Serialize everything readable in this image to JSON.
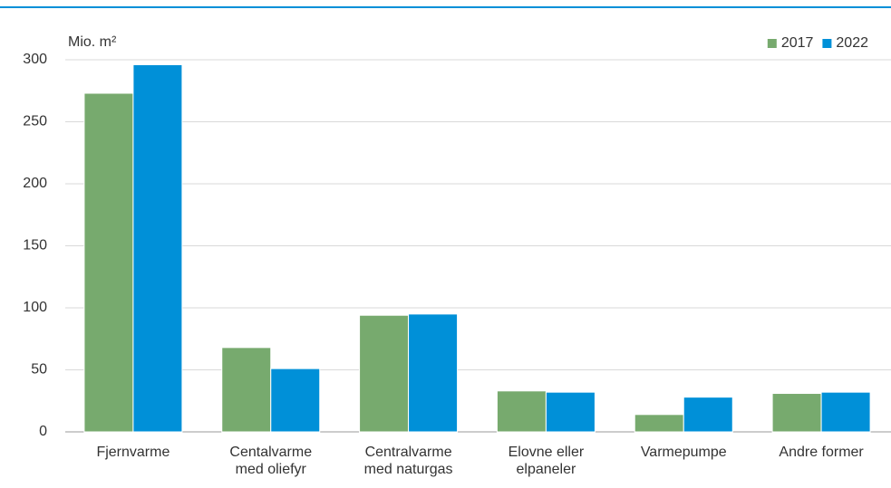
{
  "chart_data": {
    "type": "bar",
    "y_label": "Mio. m²",
    "categories": [
      "Fjernvarme",
      "Centalvarme med oliefyr",
      "Centralvarme med naturgas",
      "Elovne eller elpaneler",
      "Varmepumpe",
      "Andre former"
    ],
    "series": [
      {
        "name": "2017",
        "color": "#77aa6e",
        "values": [
          273,
          68,
          94,
          33,
          14,
          31
        ]
      },
      {
        "name": "2022",
        "color": "#0090d8",
        "values": [
          296,
          51,
          95,
          32,
          28,
          32
        ]
      }
    ],
    "ylim": [
      0,
      300
    ],
    "yticks": [
      0,
      50,
      100,
      150,
      200,
      250,
      300
    ],
    "grid": true,
    "legend": "top-right"
  }
}
